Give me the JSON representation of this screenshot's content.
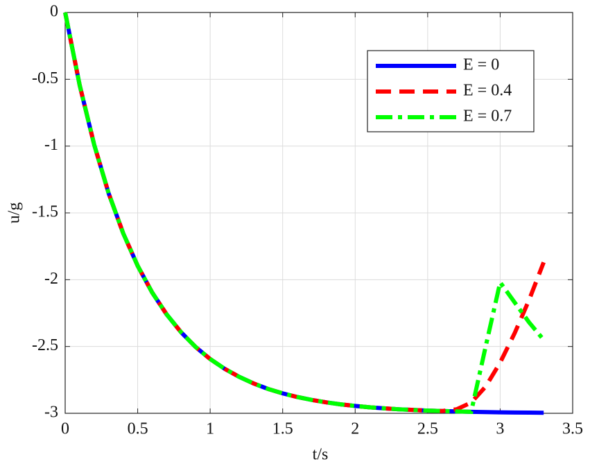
{
  "chart_data": {
    "type": "line",
    "x_label": "t/s",
    "y_label": "u/g",
    "x": [
      0,
      0.1,
      0.2,
      0.3,
      0.4,
      0.5,
      0.6,
      0.7,
      0.8,
      0.9,
      1.0,
      1.1,
      1.2,
      1.3,
      1.4,
      1.5,
      1.6,
      1.7,
      1.8,
      1.9,
      2.0,
      2.1,
      2.2,
      2.3,
      2.4,
      2.5,
      2.6,
      2.7,
      2.8,
      2.9,
      3.0,
      3.1,
      3.2,
      3.3
    ],
    "series": [
      {
        "name": "E = 0",
        "color": "#0000ff",
        "dash": "solid",
        "values": [
          0,
          -0.544,
          -0.989,
          -1.354,
          -1.652,
          -1.896,
          -2.096,
          -2.26,
          -2.394,
          -2.504,
          -2.594,
          -2.667,
          -2.727,
          -2.777,
          -2.818,
          -2.851,
          -2.878,
          -2.9,
          -2.918,
          -2.933,
          -2.945,
          -2.955,
          -2.963,
          -2.97,
          -2.975,
          -2.98,
          -2.983,
          -2.986,
          -2.989,
          -2.991,
          -2.993,
          -2.994,
          -2.995,
          -2.996
        ]
      },
      {
        "name": "E = 0.4",
        "color": "#ff0000",
        "dash": "dashed",
        "values": [
          0,
          -0.544,
          -0.989,
          -1.354,
          -1.652,
          -1.896,
          -2.096,
          -2.26,
          -2.394,
          -2.504,
          -2.594,
          -2.667,
          -2.727,
          -2.777,
          -2.818,
          -2.851,
          -2.878,
          -2.9,
          -2.918,
          -2.933,
          -2.945,
          -2.955,
          -2.963,
          -2.97,
          -2.975,
          -2.98,
          -2.983,
          -2.97,
          -2.92,
          -2.8,
          -2.62,
          -2.4,
          -2.15,
          -1.87
        ]
      },
      {
        "name": "E = 0.7",
        "color": "#00ff00",
        "dash": "dashdot",
        "values": [
          0,
          -0.544,
          -0.989,
          -1.354,
          -1.652,
          -1.896,
          -2.096,
          -2.26,
          -2.394,
          -2.504,
          -2.594,
          -2.667,
          -2.727,
          -2.777,
          -2.818,
          -2.851,
          -2.878,
          -2.9,
          -2.918,
          -2.933,
          -2.945,
          -2.955,
          -2.963,
          -2.97,
          -2.975,
          -2.98,
          -2.983,
          -2.986,
          -2.989,
          -2.5,
          -2.02,
          -2.17,
          -2.32,
          -2.45
        ]
      }
    ],
    "xlim": [
      0,
      3.5
    ],
    "xticks": [
      0,
      0.5,
      1,
      1.5,
      2,
      2.5,
      3,
      3.5
    ],
    "ylim": [
      -3,
      0
    ],
    "yticks": [
      -3,
      -2.5,
      -2,
      -1.5,
      -1,
      -0.5,
      0
    ],
    "grid": true,
    "legend_position": "upper right"
  }
}
